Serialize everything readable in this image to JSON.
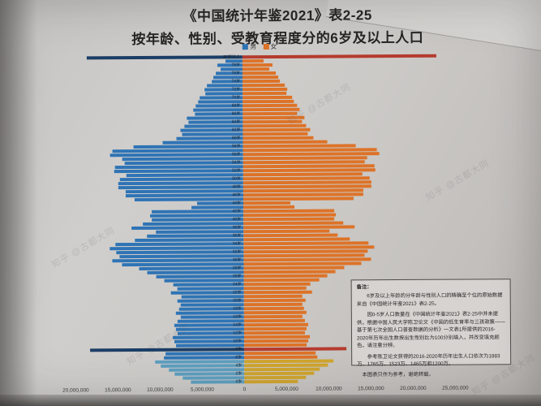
{
  "page": {
    "title_line1": "《中国统计年鉴2021》表2-25",
    "title_line2": "按年龄、性别、受教育程度分的6岁及以上人口"
  },
  "legend": {
    "male_label": "男",
    "female_label": "女"
  },
  "styles": {
    "male_color": "#2f74b5",
    "female_color": "#dd7328",
    "male_dark": "#1b3e66",
    "female_dark": "#b53b2e",
    "male_child": "#5e9ec0",
    "female_child": "#cfa42e",
    "dark_rows": [
      "80岁以上",
      "8岁"
    ],
    "child_rows": [
      "5岁",
      "4岁",
      "3岁",
      "2岁",
      "1岁",
      "0岁"
    ]
  },
  "axis": {
    "ticks": [
      {
        "label": "20,000,000",
        "value": -20000000
      },
      {
        "label": "15,000,000",
        "value": -15000000
      },
      {
        "label": "10,000,000",
        "value": -10000000
      },
      {
        "label": "5,000,000",
        "value": -5000000
      },
      {
        "label": "0",
        "value": 0
      },
      {
        "label": "5,000,000",
        "value": 5000000
      },
      {
        "label": "10,000,000",
        "value": 10000000
      },
      {
        "label": "15,000,000",
        "value": 15000000
      },
      {
        "label": "20,000,000",
        "value": 20000000
      },
      {
        "label": "25,000,000",
        "value": 25000000
      }
    ]
  },
  "note": {
    "title": "备注：",
    "p1": "6岁及以上年龄的分年龄与性别人口的精确至个位的原始数据来自《中国统计年鉴2021》表2-25。",
    "p2": "因0-5岁人口数量在《中国统计年鉴2021》表2-25中并未提供，根据中国人民大学陈卫论文《中国的低生育率与三孩政策——基于第七次全国人口普查数据的分析》一文表1所提供的2016-2020年历年出生数按出生性别比为100分别填入，并改变填充颜色，请注意分辨。",
    "p3": "参考陈卫论文获得的2016-2020年历年出生人口依次为1883万、1765万、1523万、1465万和1200万。",
    "p4": "本图表只作为参考，谢绝转载。"
  },
  "watermark": {
    "text": "知乎 @古都大同"
  },
  "chart_data": {
    "type": "bar",
    "subtype": "population_pyramid",
    "title": "《中国统计年鉴2021》表2-25 按年龄、性别、受教育程度分的6岁及以上人口",
    "legend_position": "top",
    "grid": false,
    "xlim": [
      -20000000,
      25000000
    ],
    "x_tick_labels": [
      "20,000,000",
      "15,000,000",
      "10,000,000",
      "5,000,000",
      "0",
      "5,000,000",
      "10,000,000",
      "15,000,000",
      "20,000,000",
      "25,000,000"
    ],
    "value_note": "values estimated from axis gridlines, persons",
    "categories": [
      "80岁以上",
      "79岁",
      "78岁",
      "77岁",
      "76岁",
      "75岁",
      "74岁",
      "73岁",
      "72岁",
      "71岁",
      "70岁",
      "69岁",
      "68岁",
      "67岁",
      "66岁",
      "65岁",
      "64岁",
      "63岁",
      "62岁",
      "61岁",
      "60岁",
      "59岁",
      "58岁",
      "57岁",
      "56岁",
      "55岁",
      "54岁",
      "53岁",
      "52岁",
      "51岁",
      "50岁",
      "49岁",
      "48岁",
      "47岁",
      "46岁",
      "45岁",
      "44岁",
      "43岁",
      "42岁",
      "41岁",
      "40岁",
      "39岁",
      "38岁",
      "37岁",
      "36岁",
      "35岁",
      "34岁",
      "33岁",
      "32岁",
      "31岁",
      "30岁",
      "29岁",
      "28岁",
      "27岁",
      "26岁",
      "25岁",
      "24岁",
      "23岁",
      "22岁",
      "21岁",
      "20岁",
      "19岁",
      "18岁",
      "17岁",
      "16岁",
      "15岁",
      "14岁",
      "13岁",
      "12岁",
      "11岁",
      "10岁",
      "9岁",
      "8岁",
      "7岁",
      "6岁",
      "5岁",
      "4岁",
      "3岁",
      "2岁",
      "1岁",
      "0岁"
    ],
    "series": [
      {
        "name": "男",
        "values": [
          18500000,
          2000000,
          3000000,
          2600000,
          3200000,
          3500000,
          3700000,
          4200000,
          4500000,
          4400000,
          5100000,
          5300000,
          5600000,
          5900000,
          5700000,
          6600000,
          6400000,
          6900000,
          7400000,
          7200000,
          7900000,
          9500000,
          13000000,
          15500000,
          15800000,
          14300000,
          14000000,
          15200000,
          15300000,
          13800000,
          14600000,
          14800000,
          14800000,
          13900000,
          13900000,
          12900000,
          5500000,
          6200000,
          10900000,
          11100000,
          10900000,
          11900000,
          13300000,
          10400000,
          11400000,
          12900000,
          15200000,
          15900000,
          15100000,
          14700000,
          15600000,
          14400000,
          12400000,
          11400000,
          10400000,
          9400000,
          8400000,
          7900000,
          8700000,
          7400000,
          7900000,
          7500000,
          7700000,
          8100000,
          7500000,
          7900000,
          8300000,
          8100000,
          7900000,
          8500000,
          8300000,
          8100000,
          18300000,
          9300000,
          9500000,
          10600000,
          9900000,
          8900000,
          8300000,
          7300000,
          6300000
        ]
      },
      {
        "name": "女",
        "values": [
          23000000,
          2500000,
          3600000,
          3200000,
          3900000,
          4200000,
          4400000,
          5000000,
          5300000,
          5200000,
          5900000,
          6100000,
          6400000,
          6700000,
          6400000,
          7300000,
          7000000,
          7500000,
          8000000,
          7700000,
          8400000,
          10000000,
          13400000,
          15900000,
          16200000,
          14700000,
          14400000,
          15600000,
          15700000,
          14100000,
          15000000,
          15200000,
          15200000,
          14200000,
          14200000,
          13100000,
          5600000,
          6100000,
          10800000,
          11000000,
          10800000,
          11800000,
          13200000,
          10200000,
          11200000,
          12600000,
          14800000,
          15500000,
          14700000,
          14300000,
          15100000,
          13900000,
          11900000,
          10900000,
          9900000,
          8900000,
          7900000,
          7400000,
          8100000,
          6900000,
          7300000,
          6900000,
          7100000,
          7400000,
          6900000,
          7200000,
          7600000,
          7400000,
          7200000,
          7800000,
          7600000,
          7400000,
          12100000,
          8500000,
          8700000,
          10600000,
          9900000,
          8900000,
          8300000,
          7300000,
          6300000
        ]
      }
    ]
  }
}
